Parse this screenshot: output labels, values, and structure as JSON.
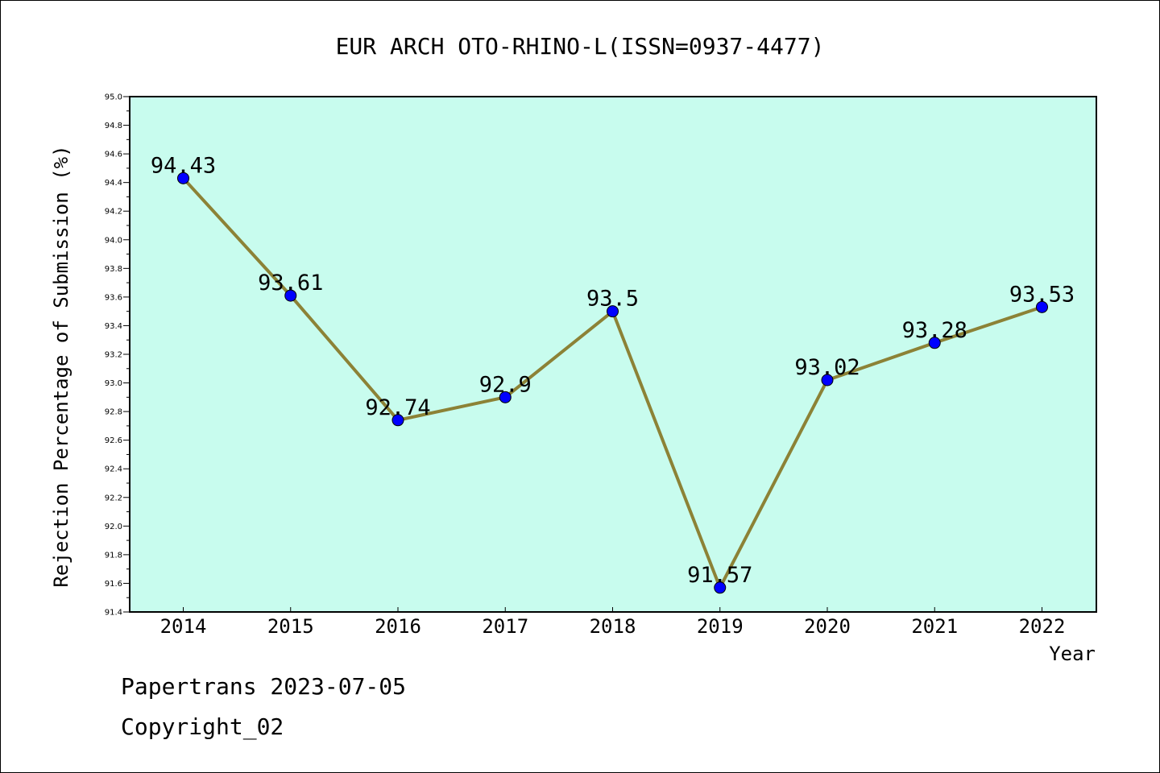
{
  "chart_data": {
    "type": "line",
    "title": "EUR ARCH OTO-RHINO-L(ISSN=0937-4477)",
    "xlabel": "Year",
    "ylabel": "Rejection Percentage of Submission (%)",
    "categories": [
      "2014",
      "2015",
      "2016",
      "2017",
      "2018",
      "2019",
      "2020",
      "2021",
      "2022"
    ],
    "values": [
      94.43,
      93.61,
      92.74,
      92.9,
      93.5,
      91.57,
      93.02,
      93.28,
      93.53
    ],
    "data_labels": [
      "94.43",
      "93.61",
      "92.74",
      "92.9",
      "93.5",
      "91.57",
      "93.02",
      "93.28",
      "93.53"
    ],
    "ylim": [
      91.4,
      95.0
    ],
    "yticks": [
      "91.4",
      "91.6",
      "91.8",
      "92.0",
      "92.2",
      "92.4",
      "92.6",
      "92.8",
      "93.0",
      "93.2",
      "93.4",
      "93.6",
      "93.8",
      "94.0",
      "94.2",
      "94.4",
      "94.6",
      "94.8",
      "95.0"
    ],
    "grid": false,
    "colors": {
      "plot_background": "#c8fcee",
      "line": "#8c8236",
      "marker": "#0000ff"
    }
  },
  "footer": {
    "line1": "Papertrans 2023-07-05",
    "line2": "Copyright_02"
  }
}
